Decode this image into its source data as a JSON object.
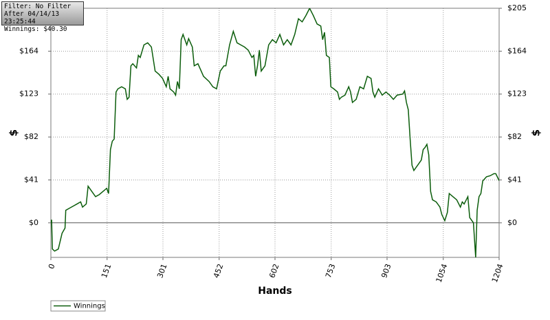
{
  "info": {
    "filter": "Filter: No Filter",
    "after": "After 04/14/13 23:25:44",
    "winnings": "Winnings: $40.30"
  },
  "chart_data": {
    "type": "line",
    "xlabel": "Hands",
    "ylabel": "$",
    "y2label": "$",
    "xlim": [
      0,
      1204
    ],
    "xticks": [
      0,
      151,
      301,
      452,
      602,
      753,
      903,
      1054,
      1204
    ],
    "ylim": [
      -33,
      205
    ],
    "yticks": [
      {
        "value": 0,
        "label": "$0"
      },
      {
        "value": 41,
        "label": "$41"
      },
      {
        "value": 82,
        "label": "$82"
      },
      {
        "value": 123,
        "label": "$123"
      },
      {
        "value": 164,
        "label": "$164"
      },
      {
        "value": 205,
        "label": "$205"
      }
    ],
    "grid": true,
    "legend": "lower left",
    "x": [
      0,
      2,
      4,
      10,
      20,
      30,
      38,
      40,
      50,
      60,
      70,
      80,
      85,
      95,
      100,
      110,
      120,
      130,
      140,
      150,
      155,
      160,
      165,
      170,
      175,
      180,
      190,
      200,
      205,
      210,
      215,
      220,
      230,
      235,
      240,
      250,
      260,
      270,
      280,
      290,
      300,
      310,
      315,
      320,
      330,
      335,
      340,
      345,
      350,
      355,
      365,
      370,
      380,
      385,
      395,
      400,
      410,
      425,
      435,
      445,
      455,
      465,
      470,
      480,
      490,
      500,
      510,
      520,
      530,
      540,
      545,
      550,
      555,
      560,
      565,
      575,
      585,
      595,
      605,
      615,
      625,
      635,
      645,
      655,
      665,
      675,
      685,
      695,
      705,
      715,
      725,
      730,
      735,
      740,
      748,
      752,
      760,
      770,
      775,
      780,
      790,
      800,
      805,
      810,
      820,
      830,
      840,
      850,
      860,
      865,
      870,
      880,
      890,
      900,
      910,
      920,
      930,
      945,
      950,
      955,
      960,
      965,
      970,
      975,
      985,
      995,
      1000,
      1005,
      1010,
      1015,
      1020,
      1025,
      1035,
      1045,
      1050,
      1058,
      1065,
      1070,
      1080,
      1090,
      1100,
      1105,
      1110,
      1120,
      1125,
      1135,
      1141,
      1145,
      1150,
      1155,
      1160,
      1170,
      1180,
      1190,
      1195,
      1204
    ],
    "series": [
      {
        "name": "Winnings",
        "color": "#0a5c0a",
        "values": [
          0,
          3,
          -25,
          -27,
          -25,
          -10,
          -5,
          12,
          14,
          16,
          18,
          20,
          15,
          18,
          35,
          30,
          25,
          27,
          30,
          33,
          28,
          70,
          78,
          80,
          125,
          128,
          130,
          128,
          118,
          120,
          150,
          152,
          148,
          160,
          158,
          170,
          172,
          168,
          145,
          142,
          138,
          130,
          140,
          128,
          125,
          122,
          135,
          128,
          175,
          180,
          170,
          176,
          168,
          150,
          152,
          148,
          140,
          135,
          130,
          128,
          145,
          150,
          150,
          170,
          183,
          172,
          170,
          168,
          165,
          158,
          160,
          140,
          150,
          165,
          145,
          150,
          170,
          175,
          172,
          180,
          170,
          175,
          170,
          180,
          195,
          192,
          198,
          205,
          198,
          190,
          188,
          175,
          182,
          160,
          158,
          130,
          128,
          125,
          118,
          120,
          122,
          130,
          125,
          115,
          118,
          130,
          128,
          140,
          138,
          125,
          120,
          128,
          122,
          125,
          122,
          118,
          122,
          123,
          126,
          115,
          108,
          80,
          55,
          50,
          55,
          60,
          70,
          72,
          75,
          65,
          30,
          22,
          20,
          15,
          8,
          2,
          10,
          28,
          25,
          22,
          15,
          20,
          18,
          25,
          5,
          0,
          -33,
          12,
          25,
          28,
          40,
          44,
          45,
          47,
          47,
          40.3
        ]
      }
    ]
  }
}
